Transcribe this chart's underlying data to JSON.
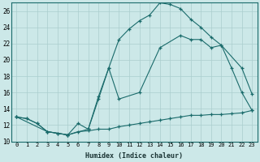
{
  "xlabel": "Humidex (Indice chaleur)",
  "bg_color": "#cce8e8",
  "grid_color": "#aacece",
  "line_color": "#1a6b6b",
  "xlim": [
    -0.5,
    23.5
  ],
  "ylim": [
    10,
    27
  ],
  "xticks": [
    0,
    1,
    2,
    3,
    4,
    5,
    6,
    7,
    8,
    9,
    10,
    11,
    12,
    13,
    14,
    15,
    16,
    17,
    18,
    19,
    20,
    21,
    22,
    23
  ],
  "yticks": [
    10,
    12,
    14,
    16,
    18,
    20,
    22,
    24,
    26
  ],
  "line1_x": [
    0,
    1,
    2,
    3,
    4,
    5,
    6,
    7,
    8,
    9,
    10,
    11,
    12,
    13,
    14,
    15,
    16,
    17,
    18,
    19,
    20,
    21,
    22,
    23
  ],
  "line1_y": [
    13.0,
    12.8,
    12.2,
    11.2,
    11.0,
    10.8,
    11.2,
    11.3,
    11.5,
    11.5,
    11.8,
    12.0,
    12.2,
    12.4,
    12.6,
    12.8,
    13.0,
    13.2,
    13.2,
    13.3,
    13.3,
    13.4,
    13.5,
    13.8
  ],
  "line2_x": [
    0,
    1,
    2,
    3,
    4,
    5,
    6,
    7,
    8,
    9,
    10,
    11,
    12,
    13,
    14,
    15,
    16,
    17,
    18,
    19,
    20,
    21,
    22,
    23
  ],
  "line2_y": [
    13.0,
    12.8,
    12.2,
    11.2,
    11.0,
    10.8,
    12.2,
    11.5,
    15.5,
    19.0,
    22.5,
    23.8,
    24.8,
    25.5,
    27.0,
    26.8,
    26.3,
    25.0,
    24.0,
    22.8,
    21.8,
    19.0,
    16.0,
    13.8
  ],
  "line3_x": [
    0,
    3,
    5,
    7,
    8,
    9,
    10,
    12,
    14,
    16,
    17,
    18,
    19,
    20,
    22,
    23
  ],
  "line3_y": [
    13.0,
    11.2,
    10.8,
    11.5,
    15.2,
    19.0,
    15.2,
    16.0,
    21.5,
    23.0,
    22.5,
    22.5,
    21.5,
    21.8,
    19.0,
    15.8
  ]
}
